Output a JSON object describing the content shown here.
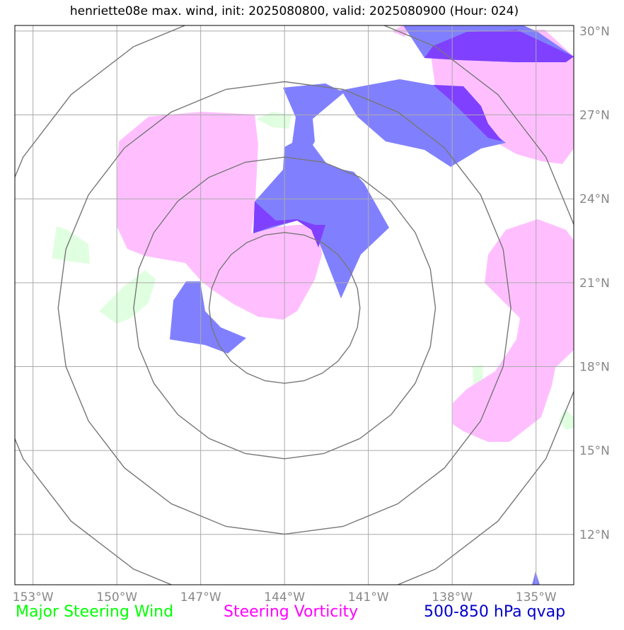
{
  "title": "henriette08e max. wind, init: 2025080800, valid: 2025080900 (Hour: 024)",
  "axes": {
    "lon_ticks": [
      -153,
      -150,
      -147,
      -144,
      -141,
      -138,
      -135
    ],
    "lon_labels": [
      "153°W",
      "150°W",
      "147°W",
      "144°W",
      "141°W",
      "138°W",
      "135°W"
    ],
    "lat_ticks": [
      30,
      27,
      24,
      21,
      18,
      15,
      12
    ],
    "lat_labels": [
      "30°N",
      "27°N",
      "24°N",
      "21°N",
      "18°N",
      "15°N",
      "12°N"
    ],
    "extent": {
      "lon_min": -153.65,
      "lon_max": -133.65,
      "lat_min": 10.2,
      "lat_max": 30.2
    }
  },
  "storm_center": {
    "lon": -144.0,
    "lat": 20.1
  },
  "range_rings_deg": [
    2.7,
    5.4,
    8.1,
    10.8
  ],
  "legend": {
    "wind": {
      "label": "Major Steering Wind",
      "color": "#00ff00"
    },
    "vorticity": {
      "label": "Steering Vorticity",
      "color": "#ff00ff"
    },
    "qvap": {
      "label": "500-850 hPa qvap",
      "color": "#0000cc"
    }
  },
  "colors": {
    "vorticity_fill": "#ffbfff",
    "qvap_fill": "#8080ff",
    "overlap_fill": "#8040ff",
    "wind_fill": "#e0ffe0",
    "grid": "#aaaaaa",
    "ring": "#777777"
  }
}
